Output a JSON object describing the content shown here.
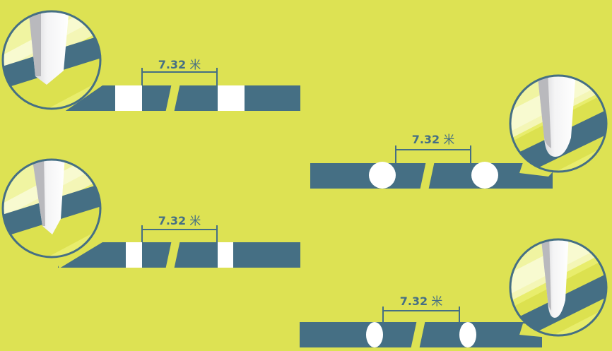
{
  "panels": [
    {
      "id": "square-a",
      "post_shape": "square",
      "value": "7.32",
      "unit": "米"
    },
    {
      "id": "round-a",
      "post_shape": "round",
      "value": "7.32",
      "unit": "米"
    },
    {
      "id": "square-b",
      "post_shape": "square",
      "value": "7.32",
      "unit": "米"
    },
    {
      "id": "oval-b",
      "post_shape": "elliptical",
      "value": "7.32",
      "unit": "米"
    }
  ],
  "colors": {
    "background": "#dde253",
    "crossbar": "#456f84",
    "post": "#ffffff",
    "magnifier_fill": "#e8ed6c"
  }
}
